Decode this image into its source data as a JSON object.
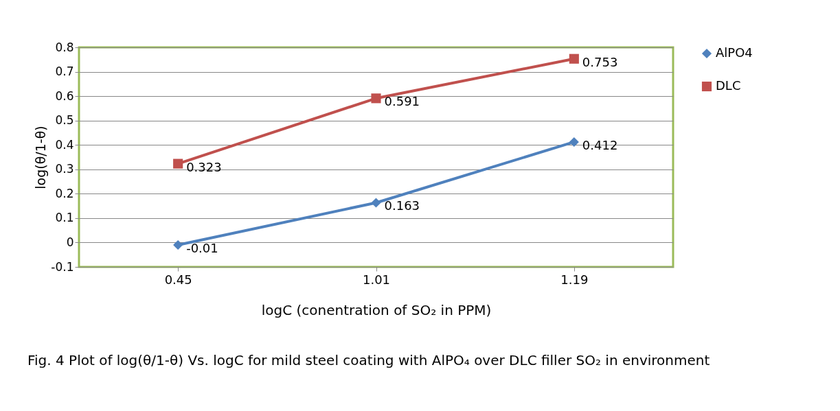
{
  "chart_data": {
    "type": "line",
    "xlabel": "logC (conentration of SO₂ in PPM)",
    "ylabel": "log(θ/1-θ)",
    "categories": [
      "0.45",
      "1.01",
      "1.19"
    ],
    "series": [
      {
        "name": "AlPO4",
        "color": "#4f81bd",
        "marker": "diamond",
        "values": [
          -0.01,
          0.163,
          0.412
        ]
      },
      {
        "name": "DLC",
        "color": "#c0504d",
        "marker": "square",
        "values": [
          0.323,
          0.591,
          0.753
        ]
      }
    ],
    "ylim": [
      -0.1,
      0.8
    ],
    "yticks": [
      -0.1,
      0,
      0.1,
      0.2,
      0.3,
      0.4,
      0.5,
      0.6,
      0.7,
      0.8
    ],
    "grid": "y",
    "legend": "right",
    "data_labels": true,
    "annotations": [
      "Fig. 4 Plot of log(θ/1-θ) Vs. logC for mild steel coating with AlPO₄ over DLC filler SO₂ in environment"
    ]
  }
}
